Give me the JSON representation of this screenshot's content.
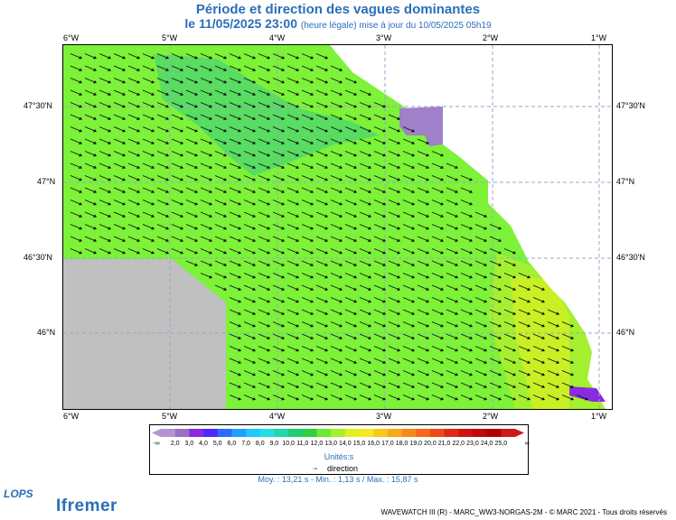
{
  "title": "Période et direction des vagues dominantes",
  "subtitle_main": "le 11/05/2025 23:00",
  "subtitle_note": "(heure légale) mise à jour du 10/05/2025 05h19",
  "lon_labels": [
    "6°W",
    "5°W",
    "4°W",
    "3°W",
    "2°W",
    "1°W"
  ],
  "lat_labels": [
    "47°30'N",
    "47°N",
    "46°30'N",
    "46°N"
  ],
  "colorbar": {
    "labels": [
      "2,0",
      "3,0",
      "4,0",
      "5,0",
      "6,0",
      "7,0",
      "8,0",
      "9,0",
      "10,0",
      "11,0",
      "12,0",
      "13,0",
      "14,0",
      "15,0",
      "16,0",
      "17,0",
      "18,0",
      "19,0",
      "20,0",
      "21,0",
      "22,0",
      "23,0",
      "24,0",
      "25,0"
    ],
    "low_label": "-∞",
    "high_label": "∞",
    "colors": [
      "#b494d0",
      "#9c6fc4",
      "#8a2be2",
      "#4a2aff",
      "#2a6cff",
      "#1ea0ff",
      "#1ec8ff",
      "#20e0e0",
      "#20d8a8",
      "#20cc70",
      "#30d040",
      "#6ee830",
      "#a8f028",
      "#e0f020",
      "#f8e820",
      "#f8c818",
      "#f8a818",
      "#f88818",
      "#f86818",
      "#f04818",
      "#e02818",
      "#d01010",
      "#c00808",
      "#b00000",
      "#d01818"
    ],
    "unit": "Unités",
    "unit_suffix": "s"
  },
  "direction_label": "direction",
  "stats": "Moy. : 13,21 s  -  Min. : 1,13 s / Max. : 15,87 s",
  "footer": "WAVEWATCH III (R) - MARC_WW3-NORGAS-2M - © MARC 2021 - Tous droits réservés",
  "logos": {
    "lops": "LOPS",
    "ifremer": "Ifremer"
  },
  "map_colors": {
    "sea_main": "#7cf238",
    "sea_light": "#a4f030",
    "sea_yellow": "#c8f024",
    "sea_long": "#52d86a",
    "land": "#ffffff",
    "nodata": "#c0c0c0",
    "purple": "#a080c8",
    "grid": "#9aa6c8",
    "arrow": "#101010"
  }
}
